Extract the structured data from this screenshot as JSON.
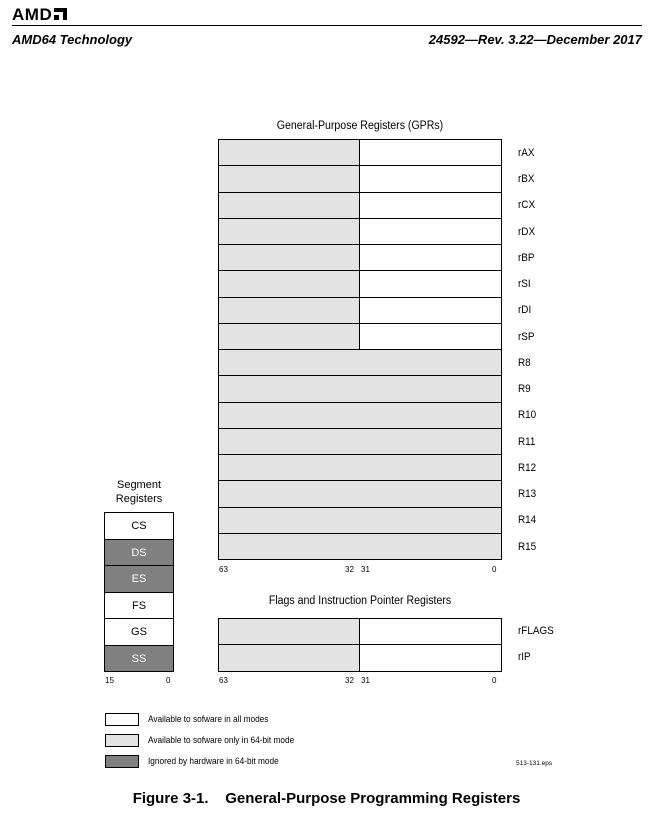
{
  "header": {
    "logo_text": "AMD",
    "left": "AMD64 Technology",
    "right": "24592—Rev. 3.22—December  2017"
  },
  "gpr": {
    "title": "General-Purpose Registers (GPRs)",
    "registers": [
      "rAX",
      "rBX",
      "rCX",
      "rDX",
      "rBP",
      "rSI",
      "rDI",
      "rSP",
      "R8",
      "R9",
      "R10",
      "R11",
      "R12",
      "R13",
      "R14",
      "R15"
    ],
    "bits": [
      "63",
      "32",
      "31",
      "0"
    ]
  },
  "flags": {
    "title": "Flags and Instruction Pointer Registers",
    "registers": [
      "rFLAGS",
      "rIP"
    ],
    "bits": [
      "63",
      "32",
      "31",
      "0"
    ]
  },
  "segment": {
    "title_line1": "Segment",
    "title_line2": "Registers",
    "registers": [
      "CS",
      "DS",
      "ES",
      "FS",
      "GS",
      "SS"
    ],
    "bits": [
      "15",
      "0"
    ]
  },
  "legend": [
    {
      "text": "Available to sofware in all modes",
      "color": "#ffffff"
    },
    {
      "text": "Available to sofware only in 64-bit mode",
      "color": "#e3e3e3"
    },
    {
      "text": "Ignored by hardware in 64-bit mode",
      "color": "#808080"
    }
  ],
  "file_id": "513-131.eps",
  "caption": "Figure 3-1.    General-Purpose Programming Registers"
}
